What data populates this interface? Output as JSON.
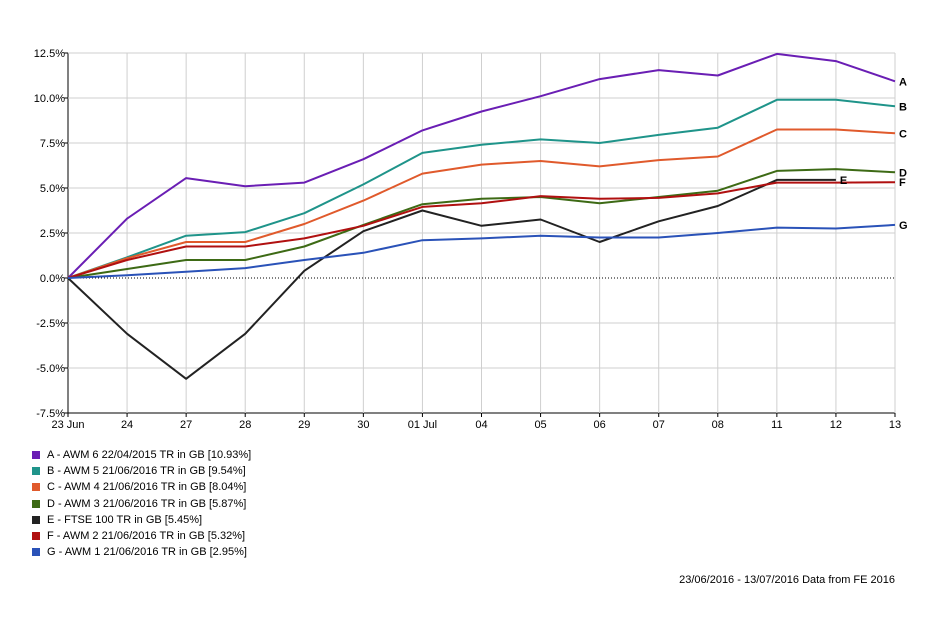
{
  "chart_data": {
    "type": "line",
    "categories": [
      "23 Jun",
      "24",
      "27",
      "28",
      "29",
      "30",
      "01 Jul",
      "04",
      "05",
      "06",
      "07",
      "08",
      "11",
      "12",
      "13"
    ],
    "y_ticks": [
      "12.5%",
      "10.0%",
      "7.5%",
      "5.0%",
      "2.5%",
      "0.0%",
      "-2.5%",
      "-5.0%",
      "-7.5%"
    ],
    "ylim": [
      -7.5,
      12.5
    ],
    "grid": true,
    "series": [
      {
        "key": "A",
        "color": "#6a1eb4",
        "legend": "A - AWM 6 22/04/2015 TR in GB [10.93%]",
        "values": [
          0,
          3.3,
          5.55,
          5.1,
          5.3,
          6.6,
          8.2,
          9.25,
          10.1,
          11.05,
          11.55,
          11.25,
          12.45,
          12.05,
          10.93
        ]
      },
      {
        "key": "B",
        "color": "#1f948a",
        "legend": "B - AWM 5 21/06/2016 TR in GB [9.54%]",
        "values": [
          0,
          1.15,
          2.35,
          2.55,
          3.6,
          5.2,
          6.95,
          7.4,
          7.7,
          7.5,
          7.95,
          8.35,
          9.9,
          9.9,
          9.54
        ]
      },
      {
        "key": "C",
        "color": "#e05a2c",
        "legend": "C - AWM 4 21/06/2016 TR in GB [8.04%]",
        "values": [
          0,
          1.1,
          2.0,
          2.0,
          3.0,
          4.3,
          5.8,
          6.3,
          6.5,
          6.2,
          6.55,
          6.75,
          8.25,
          8.25,
          8.04
        ]
      },
      {
        "key": "D",
        "color": "#3d6a15",
        "legend": "D - AWM 3 21/06/2016 TR in GB [5.87%]",
        "values": [
          0,
          0.5,
          1.0,
          1.0,
          1.75,
          2.95,
          4.1,
          4.4,
          4.5,
          4.15,
          4.5,
          4.85,
          5.95,
          6.05,
          5.87
        ]
      },
      {
        "key": "E",
        "color": "#222222",
        "legend": "E - FTSE 100 TR in GB [5.45%]",
        "values": [
          0,
          -3.1,
          -5.6,
          -3.1,
          0.4,
          2.6,
          3.75,
          2.9,
          3.25,
          2.0,
          3.15,
          4.0,
          5.45,
          5.45,
          null
        ]
      },
      {
        "key": "F",
        "color": "#b01010",
        "legend": "F - AWM 2 21/06/2016 TR in GB [5.32%]",
        "values": [
          0,
          1.0,
          1.75,
          1.75,
          2.2,
          2.9,
          3.95,
          4.15,
          4.55,
          4.4,
          4.45,
          4.7,
          5.3,
          5.3,
          5.32
        ]
      },
      {
        "key": "G",
        "color": "#2a52b8",
        "legend": "G - AWM 1 21/06/2016 TR in GB [2.95%]",
        "values": [
          0,
          0.15,
          0.35,
          0.55,
          1.0,
          1.4,
          2.1,
          2.2,
          2.35,
          2.25,
          2.25,
          2.5,
          2.8,
          2.75,
          2.95
        ]
      }
    ]
  },
  "footer": "23/06/2016 - 13/07/2016 Data from FE 2016"
}
